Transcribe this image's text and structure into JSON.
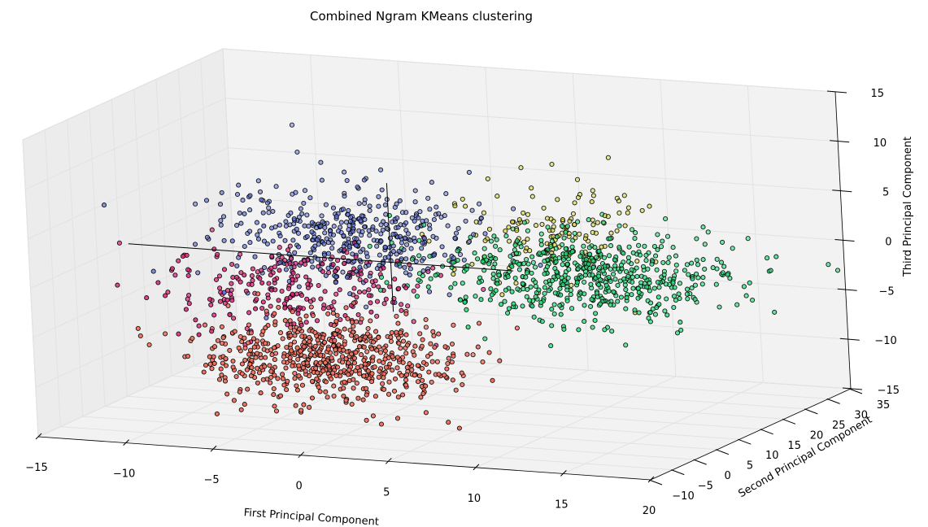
{
  "chart_data": {
    "type": "scatter3d",
    "title": "Combined Ngram KMeans clustering",
    "xlabel": "First Principal Component",
    "ylabel": "Second Principal Component",
    "zlabel": "Third Principal Component",
    "xlim": [
      -15,
      20
    ],
    "ylim": [
      -10,
      35
    ],
    "zlim": [
      -15,
      15
    ],
    "x_ticks": [
      -15,
      -10,
      -5,
      0,
      5,
      10,
      15,
      20
    ],
    "y_ticks": [
      -10,
      -5,
      0,
      5,
      10,
      15,
      20,
      25,
      30,
      35
    ],
    "z_ticks": [
      -15,
      -10,
      -5,
      0,
      5,
      10,
      15
    ],
    "grid": true,
    "pane_color": "#f2f2f2",
    "clusters": [
      {
        "color": "#5b6fd6",
        "center": [
          -5,
          22,
          0
        ],
        "spread": [
          3.5,
          5,
          2.2
        ],
        "count": 430
      },
      {
        "color": "#e0287d",
        "center": [
          -5,
          10,
          -3
        ],
        "spread": [
          3.5,
          5,
          2
        ],
        "count": 260
      },
      {
        "color": "#d4d42a",
        "center": [
          5,
          28,
          0.5
        ],
        "spread": [
          2.5,
          4,
          2.2
        ],
        "count": 140
      },
      {
        "color": "#22e07a",
        "center": [
          10,
          16,
          -1
        ],
        "spread": [
          4,
          5,
          2
        ],
        "count": 600
      },
      {
        "color": "#f07060",
        "center": [
          0,
          -2,
          -7
        ],
        "spread": [
          3.5,
          4.5,
          2
        ],
        "count": 640
      }
    ],
    "axis_lines": [
      {
        "from": [
          -15,
          12,
          0
        ],
        "to": [
          7,
          12,
          0
        ]
      },
      {
        "from": [
          0,
          12,
          -5
        ],
        "to": [
          0,
          12,
          8
        ]
      }
    ],
    "outliers": [
      {
        "color": "#5b6fd6",
        "points": [
          [
            -11,
            34,
            8
          ],
          [
            -10,
            31,
            6
          ],
          [
            -11,
            26,
            4
          ]
        ]
      },
      {
        "color": "#22e07a",
        "points": [
          [
            23,
            22,
            0
          ],
          [
            23,
            20,
            1
          ],
          [
            20,
            14,
            0
          ]
        ]
      },
      {
        "color": "#d4d42a",
        "points": [
          [
            6,
            38,
            6
          ]
        ]
      }
    ]
  }
}
